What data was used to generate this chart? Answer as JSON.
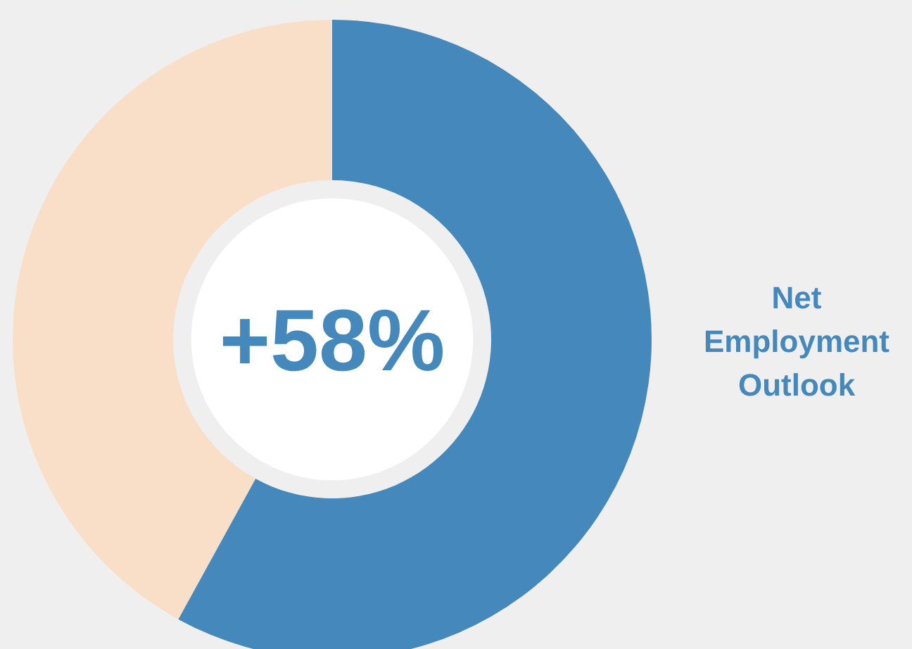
{
  "chart_data": {
    "type": "donut",
    "categories": [
      "Net Employment Outlook",
      null
    ],
    "values": [
      58,
      42
    ],
    "colors": [
      "#4589bc",
      "#f9dfc8"
    ],
    "annotations": [
      "+58%"
    ]
  }
}
